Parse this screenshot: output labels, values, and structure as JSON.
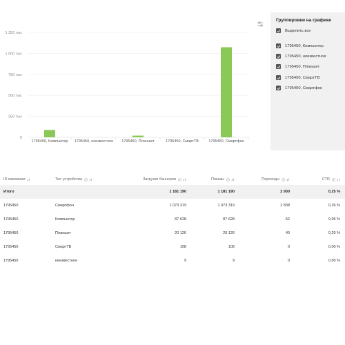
{
  "chart_data": {
    "type": "bar",
    "categories": [
      "1795450, Компьютер",
      "1795450, неизвестное",
      "1795450, Планшет",
      "1795450, СмартТВ",
      "1795450, Смартфон"
    ],
    "values": [
      87628,
      9,
      20126,
      108,
      1073319
    ],
    "yticks": [
      "0",
      "250 тыс",
      "500 тыс",
      "750 тыс",
      "1 000 тыс",
      "1 250 тыс"
    ],
    "ylim": [
      0,
      1250000
    ],
    "bar_color": "#8ac858",
    "grid": true
  },
  "legend": {
    "title": "Группировки на графике",
    "items": [
      {
        "label": "Выделить все"
      },
      {
        "label": "1795450, Компьютер"
      },
      {
        "label": "1795450, неизвестное"
      },
      {
        "label": "1795450, Планшет"
      },
      {
        "label": "1795450, СмартТВ"
      },
      {
        "label": "1795450, Смартфон"
      }
    ]
  },
  "table": {
    "headers": {
      "id": "ID кампании",
      "device": "Тип устройства",
      "banners": "Загрузки баннеров",
      "shows": "Показы",
      "clicks": "Переходы",
      "ctr": "CTR"
    },
    "total": {
      "label": "Итого",
      "banners": "1 181 190",
      "shows": "1 181 190",
      "clicks": "2 930",
      "ctr": "0,25 %"
    },
    "rows": [
      {
        "id": "1795450",
        "device": "Смартфон",
        "banners": "1 073 319",
        "shows": "1 073 319",
        "clicks": "2 838",
        "ctr": "0,26 %"
      },
      {
        "id": "1795450",
        "device": "Компьютер",
        "banners": "87 628",
        "shows": "87 628",
        "clicks": "52",
        "ctr": "0,06 %"
      },
      {
        "id": "1795450",
        "device": "Планшет",
        "banners": "20 126",
        "shows": "20 126",
        "clicks": "40",
        "ctr": "0,20 %"
      },
      {
        "id": "1795450",
        "device": "СмартТВ",
        "banners": "108",
        "shows": "108",
        "clicks": "0",
        "ctr": "0,00 %"
      },
      {
        "id": "1795450",
        "device": "неизвестное",
        "banners": "9",
        "shows": "9",
        "clicks": "0",
        "ctr": "0,00 %"
      }
    ]
  }
}
